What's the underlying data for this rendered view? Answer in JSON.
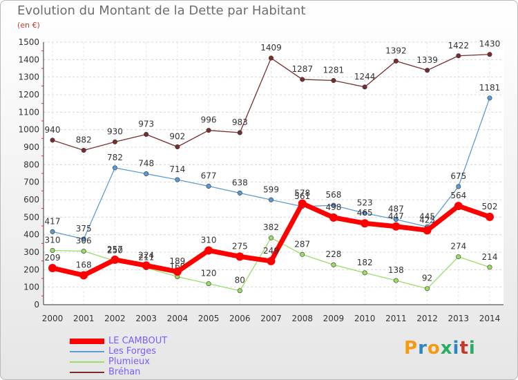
{
  "header": {
    "title": "Evolution du Montant de la Dette par Habitant",
    "unit": "(en €)"
  },
  "logo": {
    "text": "Proxiti",
    "colors": [
      "#f39c12",
      "#2e86c1",
      "#f39c12",
      "#27ae60",
      "#2e86c1",
      "#c0392b",
      "#27ae60"
    ]
  },
  "chart_data": {
    "type": "line",
    "title": "Evolution du Montant de la Dette par Habitant",
    "ylabel": "(en €)",
    "xlabel": "",
    "x": [
      "2000",
      "2001",
      "2002",
      "2003",
      "2004",
      "2005",
      "2006",
      "2007",
      "2008",
      "2009",
      "2010",
      "2011",
      "2012",
      "2013",
      "2014"
    ],
    "ylim": [
      0,
      1500
    ],
    "yticks": [
      0,
      100,
      200,
      300,
      400,
      500,
      600,
      700,
      800,
      900,
      1000,
      1100,
      1200,
      1300,
      1400,
      1500
    ],
    "grid": true,
    "legend_position": "bottom-left",
    "series": [
      {
        "name": "LE CAMBOUT",
        "color": "#ff0000",
        "values": [
          209,
          168,
          257,
          224,
          189,
          310,
          275,
          249,
          578,
          498,
          465,
          447,
          425,
          564,
          502
        ]
      },
      {
        "name": "Les Forges",
        "color": "#5b9bd5",
        "values": [
          417,
          375,
          782,
          748,
          714,
          677,
          638,
          599,
          561,
          568,
          523,
          487,
          445,
          675,
          1181
        ]
      },
      {
        "name": "Plumieux",
        "color": "#99dd66",
        "values": [
          310,
          306,
          250,
          211,
          160,
          120,
          80,
          382,
          287,
          228,
          182,
          138,
          92,
          274,
          214
        ]
      },
      {
        "name": "Bréhan",
        "color": "#7b2c2c",
        "values": [
          940,
          882,
          930,
          973,
          902,
          996,
          983,
          1409,
          1287,
          1281,
          1244,
          1392,
          1339,
          1422,
          1430
        ]
      }
    ]
  }
}
